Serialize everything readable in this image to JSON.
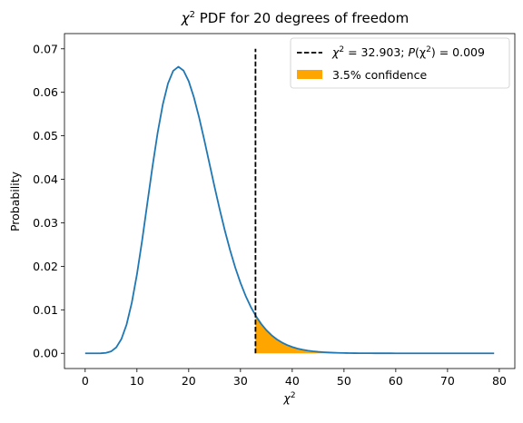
{
  "chart_data": {
    "type": "line",
    "title": {
      "prefix": "χ",
      "sup": "2",
      "suffix": " PDF for 20 degrees of freedom"
    },
    "xlabel": {
      "base": "χ",
      "sup": "2"
    },
    "ylabel": "Probability",
    "xlim": [
      -4,
      83
    ],
    "ylim": [
      -0.0035,
      0.0735
    ],
    "xticks": [
      0,
      10,
      20,
      30,
      40,
      50,
      60,
      70,
      80
    ],
    "xtick_labels": [
      "0",
      "10",
      "20",
      "30",
      "40",
      "50",
      "60",
      "70",
      "80"
    ],
    "yticks": [
      0.0,
      0.01,
      0.02,
      0.03,
      0.04,
      0.05,
      0.06,
      0.07
    ],
    "ytick_labels": [
      "0.00",
      "0.01",
      "0.02",
      "0.03",
      "0.04",
      "0.05",
      "0.06",
      "0.07"
    ],
    "grid": false,
    "legend_placement": "top-right",
    "degrees_of_freedom": 20,
    "series": [
      {
        "color": "#1f77b4",
        "x_range": [
          0,
          79
        ],
        "x_step": 1
      }
    ],
    "vline": {
      "x": 32.903,
      "y_range": [
        0,
        0.07
      ],
      "color": "#000000",
      "style": "dashed",
      "legend": {
        "chi_base": "χ",
        "sup": "2",
        "mid": " = 32.903; ",
        "p": "P",
        "paren_open": "(χ",
        "paren_sup": "2",
        "tail": ") = 0.009"
      }
    },
    "fill": {
      "x_from": 32.903,
      "x_to": 79,
      "color": "#ffa500",
      "legend": "3.5% confidence"
    }
  }
}
